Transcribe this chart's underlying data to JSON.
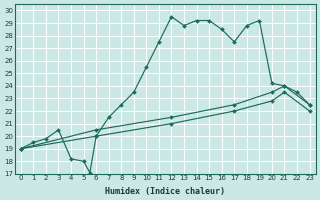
{
  "xlabel": "Humidex (Indice chaleur)",
  "bg_color": "#cce8e4",
  "line_color": "#1a6b5a",
  "xlim": [
    -0.5,
    23.5
  ],
  "ylim": [
    17,
    30.5
  ],
  "xticks": [
    0,
    1,
    2,
    3,
    4,
    5,
    6,
    7,
    8,
    9,
    10,
    11,
    12,
    13,
    14,
    15,
    16,
    17,
    18,
    19,
    20,
    21,
    22,
    23
  ],
  "yticks": [
    17,
    18,
    19,
    20,
    21,
    22,
    23,
    24,
    25,
    26,
    27,
    28,
    29,
    30
  ],
  "line1_x": [
    0,
    1,
    2,
    3,
    4,
    5,
    5.5,
    6,
    7,
    8,
    9,
    10,
    11,
    12,
    13,
    14,
    15,
    16,
    17,
    18,
    19,
    20,
    21,
    22,
    23
  ],
  "line1_y": [
    19,
    19.5,
    19.8,
    20.5,
    18.2,
    18.0,
    17.1,
    20.0,
    21.5,
    22.5,
    23.5,
    25.5,
    27.5,
    29.5,
    28.8,
    29.2,
    29.2,
    28.5,
    27.5,
    28.8,
    29.2,
    24.2,
    24.0,
    23.5,
    22.5
  ],
  "line2_x": [
    0,
    6,
    12,
    17,
    20,
    21,
    23
  ],
  "line2_y": [
    19,
    20.5,
    21.5,
    22.5,
    23.5,
    24.0,
    22.5
  ],
  "line3_x": [
    0,
    6,
    12,
    17,
    20,
    21,
    23
  ],
  "line3_y": [
    19,
    20.0,
    21.0,
    22.0,
    22.8,
    23.5,
    22.0
  ]
}
